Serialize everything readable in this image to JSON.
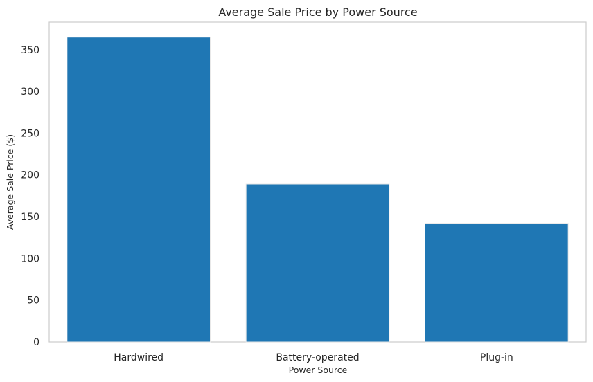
{
  "chart_data": {
    "type": "bar",
    "title": "Average Sale Price by Power Source",
    "xlabel": "Power Source",
    "ylabel": "Average Sale Price ($)",
    "categories": [
      "Hardwired",
      "Battery-operated",
      "Plug-in"
    ],
    "values": [
      365,
      189,
      142
    ],
    "ylim": [
      0,
      383
    ],
    "yticks": [
      0,
      50,
      100,
      150,
      200,
      250,
      300,
      350
    ],
    "grid": false,
    "legend": "none",
    "bar_color": "#1f77b4",
    "bar_edge_color": "#e8e8e8",
    "frame_color": "#cccccc"
  }
}
